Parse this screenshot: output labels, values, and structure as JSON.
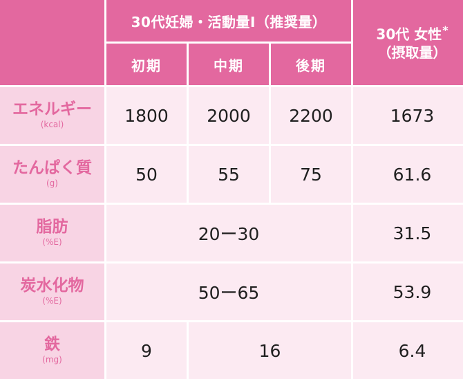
{
  "header": {
    "group_title": "30代妊婦・活動量Ⅰ（推奨量）",
    "subheads": [
      "初期",
      "中期",
      "後期"
    ],
    "right_line1": "30代 女性",
    "right_asterisk": "*",
    "right_line2": "（摂取量）"
  },
  "rows": [
    {
      "label": "エネルギー",
      "unit": "(kcal)",
      "early": "1800",
      "mid": "2000",
      "late": "2200",
      "women30s": "1673"
    },
    {
      "label": "たんぱく質",
      "unit": "(g)",
      "early": "50",
      "mid": "55",
      "late": "75",
      "women30s": "61.6"
    },
    {
      "label": "脂肪",
      "unit": "(%E)",
      "range": "20ー30",
      "women30s": "31.5"
    },
    {
      "label": "炭水化物",
      "unit": "(%E)",
      "range": "50ー65",
      "women30s": "53.9"
    },
    {
      "label": "鉄",
      "unit": "(mg)",
      "early": "9",
      "mid_late": "16",
      "women30s": "6.4"
    }
  ],
  "colors": {
    "header_bg": "#e3689f",
    "label_bg": "#f8d4e4",
    "value_bg": "#fceaf2",
    "label_text": "#e3689f"
  }
}
